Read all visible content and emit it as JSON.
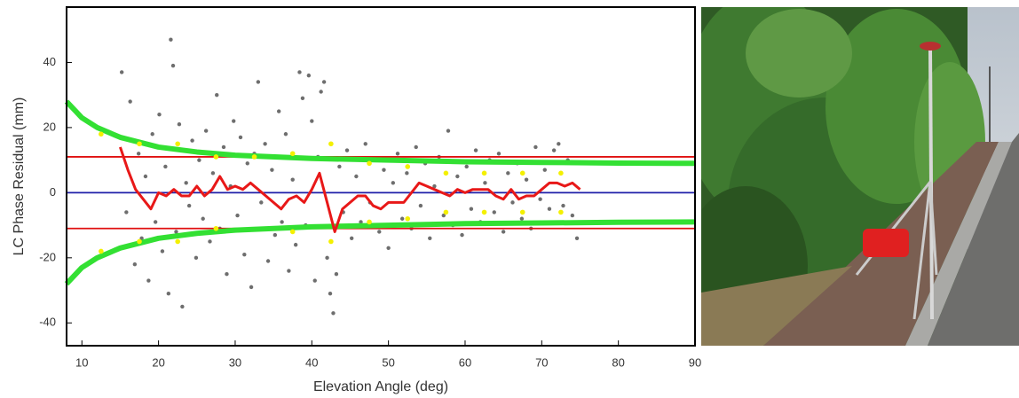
{
  "chart_data": {
    "type": "scatter",
    "xlabel": "Elevation Angle (deg)",
    "ylabel": "LC Phase Residual (mm)",
    "xlim": [
      8,
      90
    ],
    "ylim": [
      -47,
      57
    ],
    "xticks": [
      10,
      20,
      30,
      40,
      50,
      60,
      70,
      80,
      90
    ],
    "yticks": [
      -40,
      -20,
      0,
      20,
      40
    ],
    "series": [
      {
        "type": "scatter",
        "color": "#4a4a4a",
        "x": [
          15.2,
          15.8,
          16.3,
          16.9,
          17.4,
          17.8,
          18.3,
          18.7,
          19.2,
          19.6,
          20.1,
          20.5,
          20.9,
          21.3,
          21.6,
          21.9,
          22.3,
          22.7,
          23.1,
          23.6,
          24.0,
          24.4,
          24.9,
          25.3,
          25.8,
          26.2,
          26.7,
          27.1,
          27.6,
          28.0,
          28.5,
          28.9,
          29.4,
          29.8,
          30.3,
          30.7,
          31.2,
          31.6,
          32.1,
          32.5,
          33.0,
          33.4,
          33.9,
          34.3,
          34.8,
          35.2,
          35.7,
          36.1,
          36.6,
          37.0,
          37.5,
          37.9,
          38.4,
          38.8,
          39.2,
          39.6,
          40.0,
          40.4,
          40.8,
          41.2,
          41.6,
          42.0,
          42.4,
          42.8,
          43.2,
          43.6,
          44.1,
          44.6,
          45.2,
          45.8,
          46.4,
          47.0,
          47.6,
          48.2,
          48.8,
          49.4,
          50.0,
          50.6,
          51.2,
          51.8,
          52.4,
          53.0,
          53.6,
          54.2,
          54.8,
          55.4,
          56.0,
          56.6,
          57.2,
          57.8,
          58.4,
          59.0,
          59.6,
          60.2,
          60.8,
          61.4,
          62.0,
          62.6,
          63.2,
          63.8,
          64.4,
          65.0,
          65.6,
          66.2,
          66.8,
          67.4,
          68.0,
          68.6,
          69.2,
          69.8,
          70.4,
          71.0,
          71.6,
          72.2,
          72.8,
          73.4,
          74.0,
          74.6
        ],
        "values": [
          37,
          -6,
          28,
          -22,
          12,
          -14,
          5,
          -27,
          18,
          -9,
          24,
          -18,
          8,
          -31,
          47,
          39,
          -12,
          21,
          -35,
          3,
          -4,
          16,
          -20,
          10,
          -8,
          19,
          -15,
          6,
          30,
          -11,
          14,
          -25,
          2,
          22,
          -7,
          17,
          -19,
          9,
          -29,
          12,
          34,
          -3,
          15,
          -21,
          7,
          -13,
          25,
          -9,
          18,
          -24,
          4,
          -16,
          37,
          29,
          -10,
          36,
          22,
          -27,
          11,
          31,
          34,
          -20,
          -31,
          -37,
          -25,
          8,
          -6,
          13,
          -14,
          5,
          -9,
          15,
          -3,
          10,
          -12,
          7,
          -17,
          3,
          12,
          -8,
          6,
          -11,
          14,
          -4,
          9,
          -14,
          2,
          11,
          -7,
          19,
          -10,
          5,
          -13,
          8,
          -5,
          13,
          -9,
          3,
          10,
          -6,
          12,
          -12,
          6,
          -3,
          9,
          -8,
          4,
          -11,
          14,
          -2,
          7,
          -5,
          13,
          15,
          -4,
          10,
          -7,
          -14
        ]
      },
      {
        "type": "line",
        "color": "#1f1fa8",
        "x": [
          8,
          90
        ],
        "values": [
          0,
          0
        ]
      },
      {
        "type": "line",
        "color": "#e01010",
        "x": [
          8,
          90
        ],
        "values": [
          11,
          11
        ]
      },
      {
        "type": "line",
        "color": "#e01010",
        "x": [
          8,
          90
        ],
        "values": [
          -11,
          -11
        ]
      },
      {
        "type": "line",
        "color": "#33e033",
        "x": [
          8,
          10,
          12,
          15,
          20,
          25,
          30,
          40,
          50,
          60,
          70,
          80,
          90
        ],
        "values": [
          28,
          23,
          20,
          17,
          14,
          12.5,
          11.5,
          10.5,
          10,
          9.5,
          9.3,
          9.1,
          9
        ]
      },
      {
        "type": "line",
        "color": "#33e033",
        "x": [
          8,
          10,
          12,
          15,
          20,
          25,
          30,
          40,
          50,
          60,
          70,
          80,
          90
        ],
        "values": [
          -28,
          -23,
          -20,
          -17,
          -14,
          -12.5,
          -11.5,
          -10.5,
          -10,
          -9.5,
          -9.3,
          -9.1,
          -9
        ]
      },
      {
        "type": "line",
        "color": "#e81818",
        "x": [
          15,
          16,
          17,
          18,
          19,
          20,
          21,
          22,
          23,
          24,
          25,
          26,
          27,
          28,
          29,
          30,
          31,
          32,
          33,
          34,
          35,
          36,
          37,
          38,
          39,
          40,
          41,
          42,
          43,
          44,
          45,
          46,
          47,
          48,
          49,
          50,
          51,
          52,
          53,
          54,
          55,
          56,
          57,
          58,
          59,
          60,
          61,
          62,
          63,
          64,
          65,
          66,
          67,
          68,
          69,
          70,
          71,
          72,
          73,
          74,
          75
        ],
        "values": [
          14,
          7,
          1,
          -2,
          -5,
          0,
          -1,
          1,
          -1,
          -1,
          2,
          -1,
          1,
          5,
          1,
          2,
          1,
          3,
          1,
          -1,
          -3,
          -5,
          -2,
          -1,
          -3,
          1,
          6,
          -3,
          -12,
          -5,
          -3,
          -1,
          -1,
          -4,
          -5,
          -3,
          -3,
          -3,
          0,
          3,
          2,
          1,
          0,
          -1,
          1,
          0,
          1,
          1,
          1,
          -1,
          -2,
          1,
          -2,
          -1,
          -1,
          1,
          3,
          3,
          2,
          3,
          1
        ]
      },
      {
        "type": "scatter",
        "color": "#f4f000",
        "x": [
          12.5,
          12.5,
          17.5,
          17.5,
          22.5,
          22.5,
          27.5,
          27.5,
          32.5,
          37.5,
          37.5,
          42.5,
          42.5,
          47.5,
          47.5,
          52.5,
          52.5,
          57.5,
          57.5,
          62.5,
          62.5,
          67.5,
          67.5,
          72.5,
          72.5
        ],
        "values": [
          18,
          -18,
          15,
          -15,
          15,
          -15,
          11,
          -11,
          11,
          12,
          -12,
          15,
          -15,
          9,
          -9,
          8,
          -8,
          6,
          -6,
          6,
          -6,
          6,
          -6,
          6,
          -6
        ]
      }
    ]
  }
}
